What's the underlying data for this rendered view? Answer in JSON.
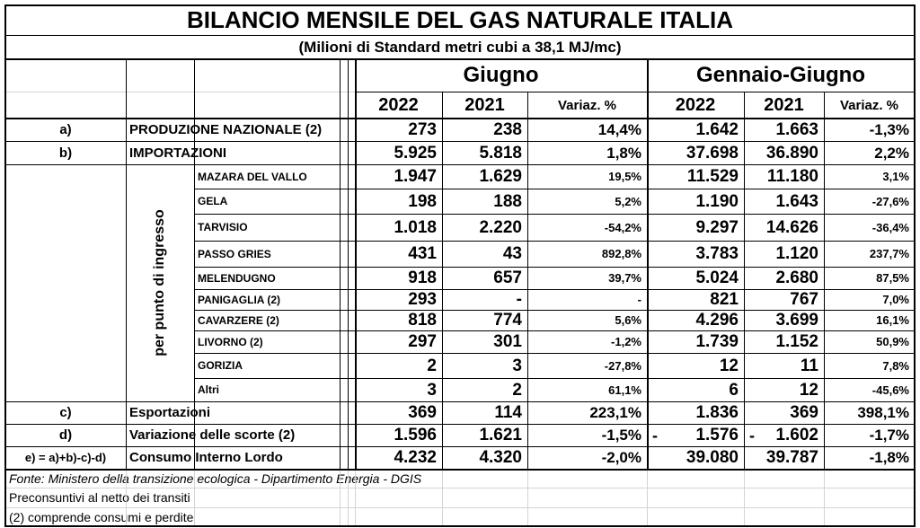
{
  "title": "BILANCIO MENSILE DEL GAS NATURALE ITALIA",
  "subtitle": "(Milioni di Standard metri cubi a 38,1 MJ/mc)",
  "group_month": "Giugno",
  "group_ytd": "Gennaio-Giugno",
  "col_headers": [
    "2022",
    "2021",
    "Variaz. %",
    "2022",
    "2021",
    "Variaz. %"
  ],
  "side_label": "per punto di ingresso",
  "rows": [
    {
      "code": "a)",
      "label": "PRODUZIONE NAZIONALE (2)",
      "v": [
        "273",
        "238",
        "14,4%",
        "1.642",
        "1.663",
        "-1,3%"
      ]
    },
    {
      "code": "b)",
      "label": "IMPORTAZIONI",
      "v": [
        "5.925",
        "5.818",
        "1,8%",
        "37.698",
        "36.890",
        "2,2%"
      ]
    },
    {
      "code": "",
      "label": "MAZARA DEL VALLO",
      "v": [
        "1.947",
        "1.629",
        "19,5%",
        "11.529",
        "11.180",
        "3,1%"
      ]
    },
    {
      "code": "",
      "label": "GELA",
      "v": [
        "198",
        "188",
        "5,2%",
        "1.190",
        "1.643",
        "-27,6%"
      ]
    },
    {
      "code": "",
      "label": "TARVISIO",
      "v": [
        "1.018",
        "2.220",
        "-54,2%",
        "9.297",
        "14.626",
        "-36,4%"
      ]
    },
    {
      "code": "",
      "label": "PASSO GRIES",
      "v": [
        "431",
        "43",
        "892,8%",
        "3.783",
        "1.120",
        "237,7%"
      ]
    },
    {
      "code": "",
      "label": "MELENDUGNO",
      "v": [
        "918",
        "657",
        "39,7%",
        "5.024",
        "2.680",
        "87,5%"
      ]
    },
    {
      "code": "",
      "label": "PANIGAGLIA (2)",
      "v": [
        "293",
        "-",
        "-",
        "821",
        "767",
        "7,0%"
      ]
    },
    {
      "code": "",
      "label": "CAVARZERE (2)",
      "v": [
        "818",
        "774",
        "5,6%",
        "4.296",
        "3.699",
        "16,1%"
      ]
    },
    {
      "code": "",
      "label": "LIVORNO (2)",
      "v": [
        "297",
        "301",
        "-1,2%",
        "1.739",
        "1.152",
        "50,9%"
      ]
    },
    {
      "code": "",
      "label": "GORIZIA",
      "v": [
        "2",
        "3",
        "-27,8%",
        "12",
        "11",
        "7,8%"
      ]
    },
    {
      "code": "",
      "label": "Altri",
      "v": [
        "3",
        "2",
        "61,1%",
        "6",
        "12",
        "-45,6%"
      ]
    },
    {
      "code": "c)",
      "label": "Esportazioni",
      "v": [
        "369",
        "114",
        "223,1%",
        "1.836",
        "369",
        "398,1%"
      ]
    },
    {
      "code": "d)",
      "label": "Variazione delle scorte (2)",
      "v": [
        "1.596",
        "1.621",
        "-1,5%",
        "1.576",
        "1.602",
        "-1,7%"
      ]
    },
    {
      "code": "e) = a)+b)-c)-d)",
      "label": "Consumo Interno Lordo",
      "v": [
        "4.232",
        "4.320",
        "-2,0%",
        "39.080",
        "39.787",
        "-1,8%"
      ]
    }
  ],
  "dash_marks": [
    "-",
    "-"
  ],
  "footnotes": [
    "Fonte: Ministero della transizione ecologica - Dipartimento Energia - DGIS",
    "Preconsuntivi al netto dei transiti",
    "(2) comprende consumi e perdite"
  ]
}
